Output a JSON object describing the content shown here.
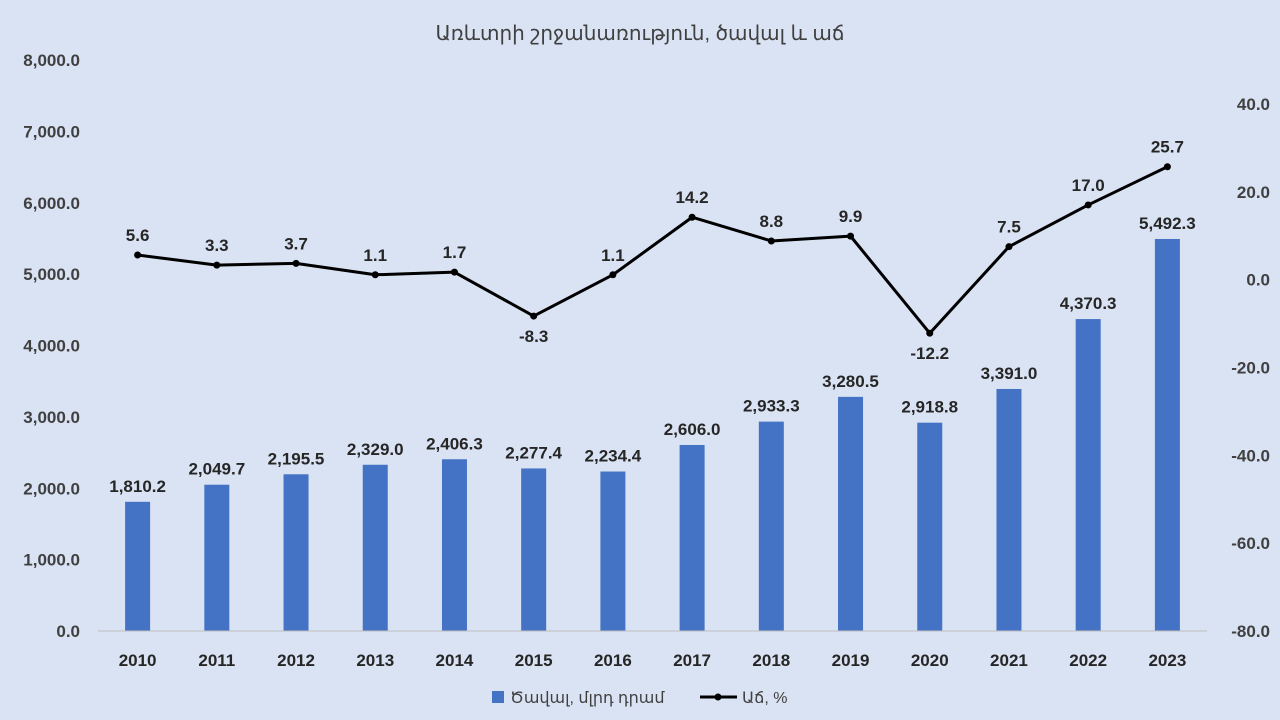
{
  "chart_data": {
    "type": "bar",
    "title": "Առևտրի շրջանառություն, ծավալ և աճ",
    "categories": [
      "2010",
      "2011",
      "2012",
      "2013",
      "2014",
      "2015",
      "2016",
      "2017",
      "2018",
      "2019",
      "2020",
      "2021",
      "2022",
      "2023"
    ],
    "series": [
      {
        "name": "Ծավալ, մլրդ դրամ",
        "type": "bar",
        "axis": "left",
        "color": "#4472c4",
        "values": [
          1810.2,
          2049.7,
          2195.5,
          2329.0,
          2406.3,
          2277.4,
          2234.4,
          2606.0,
          2933.3,
          3280.5,
          2918.8,
          3391.0,
          4370.3,
          5492.3
        ],
        "labels": [
          "1,810.2",
          "2,049.7",
          "2,195.5",
          "2,329.0",
          "2,406.3",
          "2,277.4",
          "2,234.4",
          "2,606.0",
          "2,933.3",
          "3,280.5",
          "2,918.8",
          "3,391.0",
          "4,370.3",
          "5,492.3"
        ]
      },
      {
        "name": "Աճ, %",
        "type": "line",
        "axis": "right",
        "color": "#000000",
        "values": [
          5.6,
          3.3,
          3.7,
          1.1,
          1.7,
          -8.3,
          1.1,
          14.2,
          8.8,
          9.9,
          -12.2,
          7.5,
          17.0,
          25.7
        ],
        "labels": [
          "5.6",
          "3.3",
          "3.7",
          "1.1",
          "1.7",
          "-8.3",
          "1.1",
          "14.2",
          "8.8",
          "9.9",
          "-12.2",
          "7.5",
          "17.0",
          "25.7"
        ]
      }
    ],
    "highlight_color": "#ff0000",
    "y_left": {
      "ylim": [
        0,
        8000
      ],
      "ticks": [
        0,
        1000,
        2000,
        3000,
        4000,
        5000,
        6000,
        7000,
        8000
      ],
      "tick_labels": [
        "0.0",
        "1,000.0",
        "2,000.0",
        "3,000.0",
        "4,000.0",
        "5,000.0",
        "6,000.0",
        "7,000.0",
        "8,000.0"
      ]
    },
    "y_right": {
      "ylim": [
        -80,
        50
      ],
      "ticks": [
        -80,
        -60,
        -40,
        -20,
        0,
        20,
        40
      ],
      "tick_labels": [
        "-80.0",
        "-60.0",
        "-40.0",
        "-20.0",
        "0.0",
        "20.0",
        "40.0"
      ]
    },
    "grid": false,
    "legend_position": "bottom"
  }
}
